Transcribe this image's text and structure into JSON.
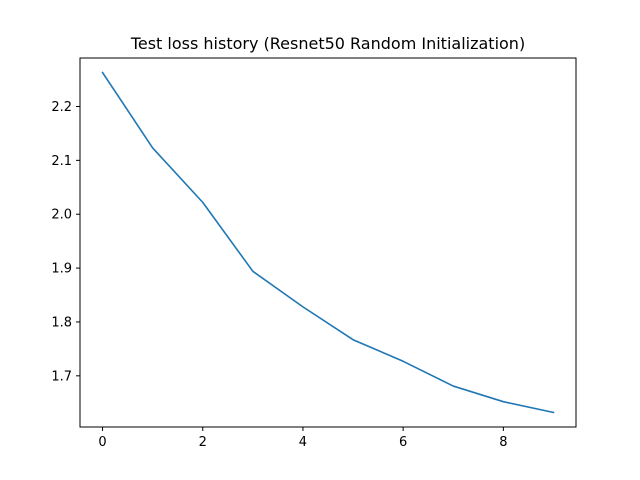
{
  "chart_data": {
    "type": "line",
    "title": "Test loss history (Resnet50 Random Initialization)",
    "xlabel": "",
    "ylabel": "",
    "xlim": [
      -0.45,
      9.45
    ],
    "ylim": [
      1.605,
      2.29
    ],
    "x_ticks": [
      0,
      2,
      4,
      6,
      8
    ],
    "x_tick_labels": [
      "0",
      "2",
      "4",
      "6",
      "8"
    ],
    "y_ticks": [
      1.7,
      1.8,
      1.9,
      2.0,
      2.1,
      2.2
    ],
    "y_tick_labels": [
      "1.7",
      "1.8",
      "1.9",
      "2.0",
      "2.1",
      "2.2"
    ],
    "grid": false,
    "legend": "none",
    "series": [
      {
        "color": "#1f77b4",
        "x": [
          0,
          1,
          2,
          3,
          4,
          5,
          6,
          7,
          8,
          9
        ],
        "values": [
          2.263,
          2.123,
          2.022,
          1.894,
          1.828,
          1.767,
          1.727,
          1.681,
          1.652,
          1.632
        ]
      }
    ]
  }
}
